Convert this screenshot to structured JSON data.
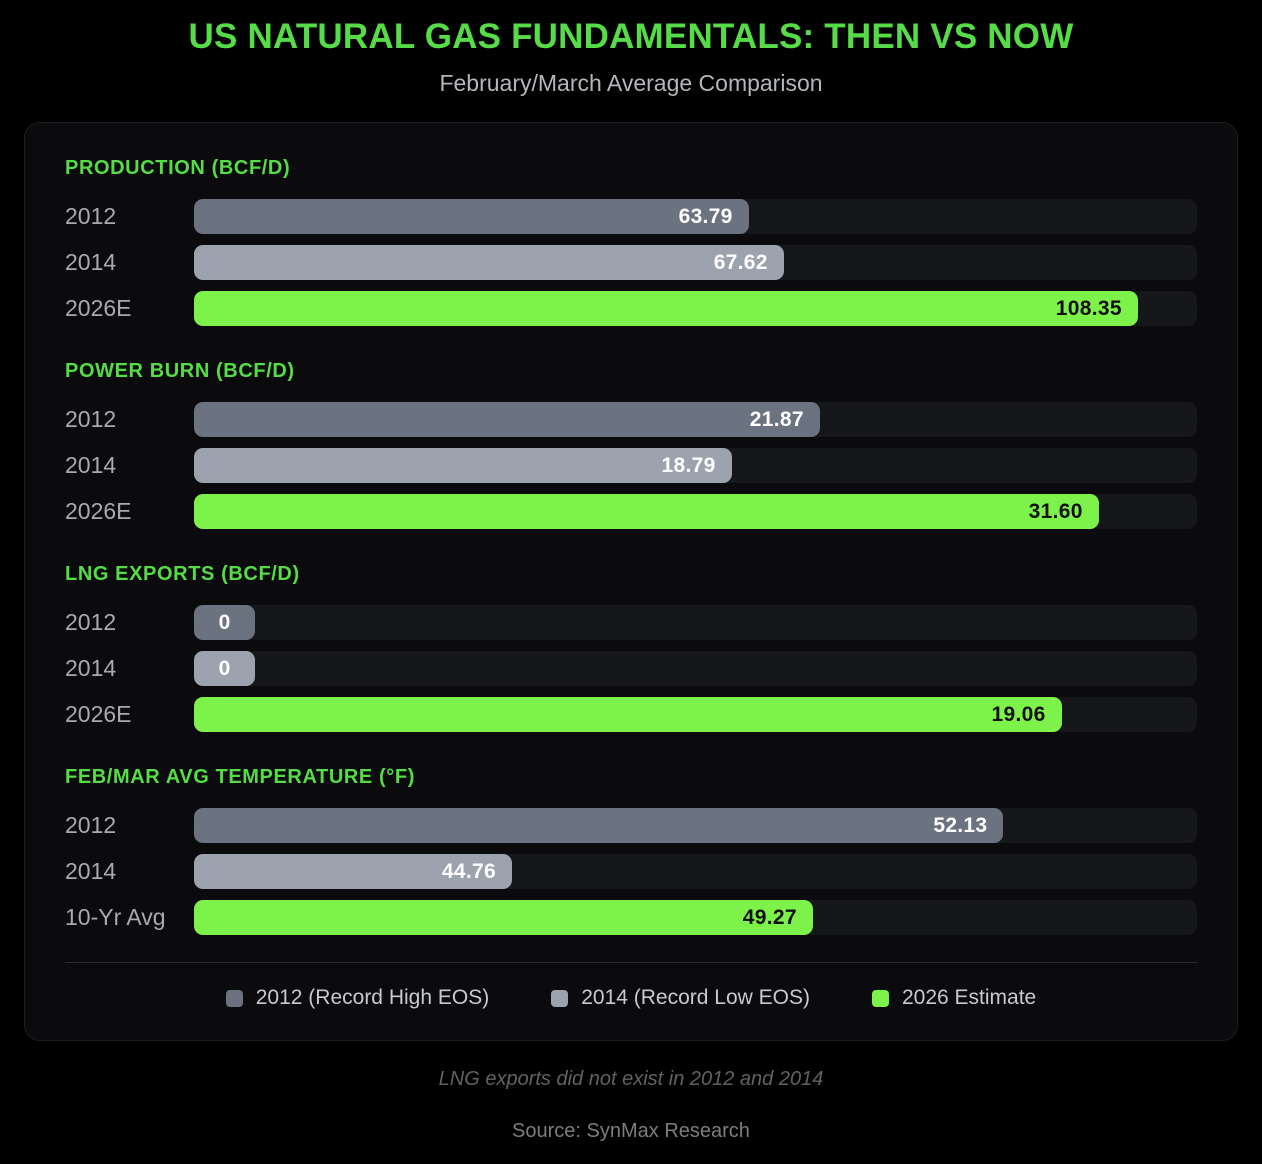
{
  "page": {
    "title": "US NATURAL GAS FUNDAMENTALS: THEN VS NOW",
    "subtitle": "February/March Average Comparison",
    "footnote": "LNG exports did not exist in 2012 and 2014",
    "source": "Source: SynMax Research"
  },
  "colors": {
    "accent_green": "#55dc46",
    "panel_bg": "#0b0b0e",
    "track": "#16171a",
    "bar_2012": "#6b7280",
    "bar_2014": "#9ca3af",
    "bar_2026": "#7df24b",
    "label_gray": "#a7aab1",
    "value_on_gray": "#ffffff",
    "value_on_green": "#101010"
  },
  "legend": {
    "items": [
      {
        "label": "2012 (Record High EOS)",
        "series": "2012"
      },
      {
        "label": "2014 (Record Low EOS)",
        "series": "2014"
      },
      {
        "label": "2026 Estimate",
        "series": "2026"
      }
    ]
  },
  "chart_data": {
    "type": "bar",
    "orientation": "horizontal",
    "title": "US NATURAL GAS FUNDAMENTALS: THEN VS NOW",
    "subtitle": "February/March Average Comparison",
    "legend_position": "bottom",
    "grid": false,
    "sections": [
      {
        "heading": "PRODUCTION (BCF/D)",
        "unit": "Bcf/d",
        "rows": [
          {
            "label": "2012",
            "series": "2012",
            "value": 63.79,
            "display": "63.79",
            "bar_pct": 55.3
          },
          {
            "label": "2014",
            "series": "2014",
            "value": 67.62,
            "display": "67.62",
            "bar_pct": 58.8
          },
          {
            "label": "2026E",
            "series": "2026",
            "value": 108.35,
            "display": "108.35",
            "bar_pct": 94.1
          }
        ]
      },
      {
        "heading": "POWER BURN (BCF/D)",
        "unit": "Bcf/d",
        "rows": [
          {
            "label": "2012",
            "series": "2012",
            "value": 21.87,
            "display": "21.87",
            "bar_pct": 62.4
          },
          {
            "label": "2014",
            "series": "2014",
            "value": 18.79,
            "display": "18.79",
            "bar_pct": 53.6
          },
          {
            "label": "2026E",
            "series": "2026",
            "value": 31.6,
            "display": "31.60",
            "bar_pct": 90.2
          }
        ]
      },
      {
        "heading": "LNG EXPORTS (BCF/D)",
        "unit": "Bcf/d",
        "rows": [
          {
            "label": "2012",
            "series": "2012",
            "value": 0,
            "display": "0",
            "bar_pct": 6.1
          },
          {
            "label": "2014",
            "series": "2014",
            "value": 0,
            "display": "0",
            "bar_pct": 6.1
          },
          {
            "label": "2026E",
            "series": "2026",
            "value": 19.06,
            "display": "19.06",
            "bar_pct": 86.5
          }
        ]
      },
      {
        "heading": "FEB/MAR AVG TEMPERATURE (°F)",
        "unit": "°F",
        "rows": [
          {
            "label": "2012",
            "series": "2012",
            "value": 52.13,
            "display": "52.13",
            "bar_pct": 80.7
          },
          {
            "label": "2014",
            "series": "2014",
            "value": 44.76,
            "display": "44.76",
            "bar_pct": 31.7
          },
          {
            "label": "10-Yr Avg",
            "series": "2026",
            "value": 49.27,
            "display": "49.27",
            "bar_pct": 61.7
          }
        ]
      }
    ]
  }
}
